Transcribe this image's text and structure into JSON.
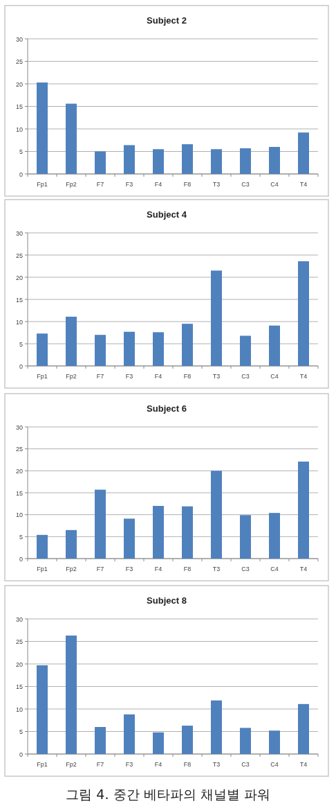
{
  "chart_data": [
    {
      "type": "bar",
      "title": "Subject 2",
      "categories": [
        "Fp1",
        "Fp2",
        "F7",
        "F3",
        "F4",
        "F8",
        "T3",
        "C3",
        "C4",
        "T4"
      ],
      "values": [
        20.3,
        15.6,
        5.0,
        6.4,
        5.5,
        6.6,
        5.5,
        5.7,
        6.0,
        9.2
      ],
      "color": "#4f81bd",
      "ylim": [
        0,
        30
      ],
      "yticks": [
        0,
        5,
        10,
        15,
        20,
        25,
        30
      ],
      "grid": "y"
    },
    {
      "type": "bar",
      "title": "Subject 4",
      "categories": [
        "Fp1",
        "Fp2",
        "F7",
        "F3",
        "F4",
        "F8",
        "T3",
        "C3",
        "C4",
        "T4"
      ],
      "values": [
        7.3,
        11.1,
        7.0,
        7.7,
        7.6,
        9.5,
        21.5,
        6.8,
        9.1,
        23.6
      ],
      "color": "#4f81bd",
      "ylim": [
        0,
        30
      ],
      "yticks": [
        0,
        5,
        10,
        15,
        20,
        25,
        30
      ],
      "grid": "y"
    },
    {
      "type": "bar",
      "title": "Subject 6",
      "categories": [
        "Fp1",
        "Fp2",
        "F7",
        "F3",
        "F4",
        "F8",
        "T3",
        "C3",
        "C4",
        "T4"
      ],
      "values": [
        5.4,
        6.5,
        15.7,
        9.1,
        12.0,
        11.9,
        20.0,
        9.9,
        10.4,
        22.1
      ],
      "color": "#4f81bd",
      "ylim": [
        0,
        30
      ],
      "yticks": [
        0,
        5,
        10,
        15,
        20,
        25,
        30
      ],
      "grid": "y"
    },
    {
      "type": "bar",
      "title": "Subject 8",
      "categories": [
        "Fp1",
        "Fp2",
        "F7",
        "F3",
        "F4",
        "F8",
        "T3",
        "C3",
        "C4",
        "T4"
      ],
      "values": [
        19.7,
        26.3,
        6.0,
        8.8,
        4.8,
        6.3,
        11.9,
        5.8,
        5.2,
        11.1
      ],
      "color": "#4f81bd",
      "ylim": [
        0,
        30
      ],
      "yticks": [
        0,
        5,
        10,
        15,
        20,
        25,
        30
      ],
      "grid": "y",
      "annotations": [
        "그림 4. 중간 베타파의 채널별 파워"
      ]
    }
  ]
}
